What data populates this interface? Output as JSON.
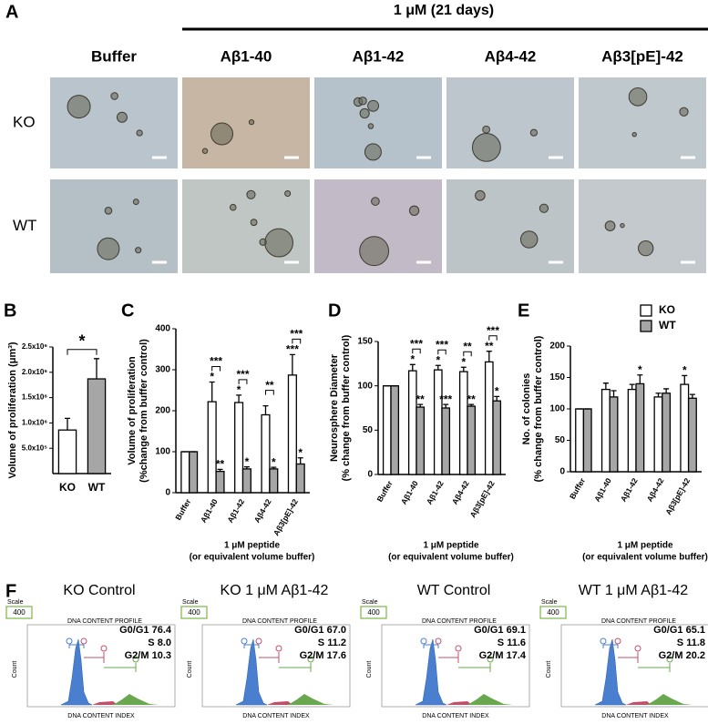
{
  "panel_a": {
    "label": "A",
    "header": "1 μM (21 days)",
    "columns": [
      "Buffer",
      "Aβ1-40",
      "Aβ1-42",
      "Aβ4-42",
      "Aβ3[pE]-42"
    ],
    "rows": [
      "KO",
      "WT"
    ]
  },
  "chart_data": [
    {
      "type": "bar",
      "panel_label": "B",
      "ylabel": [
        "Volume of proliferation (μm³)"
      ],
      "categories": [
        "KO",
        "WT"
      ],
      "series": [
        {
          "values": [
            860000,
            1870000
          ],
          "errors": [
            230000,
            400000
          ],
          "colors": [
            "#ffffff",
            "#a6a6a6"
          ]
        }
      ],
      "significance": "*",
      "ylim": [
        0,
        2500000
      ],
      "yticks": [
        {
          "value": 500000,
          "label": "5.0x10⁵"
        },
        {
          "value": 1000000,
          "label": "1.0x10⁶"
        },
        {
          "value": 1500000,
          "label": "1.5x10⁶"
        },
        {
          "value": 2000000,
          "label": "2.0x10⁶"
        },
        {
          "value": 2500000,
          "label": "2.5x10⁶"
        }
      ]
    },
    {
      "type": "bar",
      "panel_label": "C",
      "ylabel": [
        "Volume of proliferation",
        "(%change from buffer control)"
      ],
      "xlabel": [
        "1 μM peptide",
        "(or equivalent volume buffer)"
      ],
      "categories": [
        "Buffer",
        "Aβ1-40",
        "Aβ1-42",
        "Aβ4-42",
        "Aβ3[pE]-42"
      ],
      "series": [
        {
          "name": "KO",
          "color": "#ffffff",
          "values": [
            100,
            222,
            220,
            190,
            287
          ],
          "errors": [
            0,
            48,
            18,
            22,
            50
          ],
          "stars": [
            null,
            "*",
            "*",
            null,
            "***"
          ]
        },
        {
          "name": "WT",
          "color": "#a6a6a6",
          "values": [
            100,
            52,
            58,
            58,
            70
          ],
          "errors": [
            0,
            5,
            5,
            4,
            15
          ],
          "stars": [
            null,
            "**",
            "*",
            "*",
            "*"
          ]
        }
      ],
      "brackets": [
        null,
        "***",
        "***",
        "**",
        "***"
      ],
      "ylim": [
        0,
        400
      ],
      "yticks": [
        0,
        100,
        200,
        300,
        400
      ]
    },
    {
      "type": "bar",
      "panel_label": "D",
      "ylabel": [
        "Neurosphere Diameter",
        "(% change from buffer control)"
      ],
      "xlabel": [
        "1 μM peptide",
        "(or equivalent volume buffer)"
      ],
      "categories": [
        "Buffer",
        "Aβ1-40",
        "Aβ1-42",
        "Aβ4-42",
        "Aβ3[pE]-42"
      ],
      "series": [
        {
          "name": "KO",
          "color": "#ffffff",
          "values": [
            100,
            117,
            118,
            116,
            127
          ],
          "errors": [
            0,
            7,
            5,
            5,
            12
          ],
          "stars": [
            null,
            "*",
            "*",
            "*",
            "**"
          ]
        },
        {
          "name": "WT",
          "color": "#a6a6a6",
          "values": [
            100,
            76,
            75,
            77,
            83
          ],
          "errors": [
            0,
            3,
            4,
            2,
            5
          ],
          "stars": [
            null,
            "**",
            "***",
            "**",
            "*"
          ]
        }
      ],
      "brackets": [
        null,
        "***",
        "***",
        "**",
        "***"
      ],
      "ylim": [
        0,
        150
      ],
      "yticks": [
        0,
        50,
        100,
        150
      ]
    },
    {
      "type": "bar",
      "panel_label": "E",
      "ylabel": [
        "No. of colonies",
        "(% change from buffer control)"
      ],
      "xlabel": [
        "1 μM peptide",
        "(or equivalent volume buffer)"
      ],
      "categories": [
        "Buffer",
        "Aβ1-40",
        "Aβ1-42",
        "Aβ4-42",
        "Aβ3[pE]-42"
      ],
      "series": [
        {
          "name": "KO",
          "color": "#ffffff",
          "values": [
            100,
            131,
            131,
            119,
            139
          ],
          "errors": [
            0,
            10,
            8,
            6,
            14
          ],
          "stars": [
            null,
            null,
            null,
            null,
            "*"
          ]
        },
        {
          "name": "WT",
          "color": "#a6a6a6",
          "values": [
            100,
            119,
            140,
            125,
            117
          ],
          "errors": [
            0,
            10,
            14,
            7,
            6
          ],
          "stars": [
            null,
            null,
            "*",
            null,
            null
          ]
        }
      ],
      "legend": "upper right",
      "ylim": [
        0,
        200
      ],
      "yticks": [
        0,
        50,
        100,
        150,
        200
      ]
    }
  ],
  "panel_f": {
    "label": "F",
    "plots": [
      {
        "title": "KO Control",
        "scale_label": "Scale",
        "scale": 400,
        "profile_title": "DNA CONTENT PROFILE",
        "y_label": "Count",
        "x_label": "DNA CONTENT INDEX",
        "stats": [
          {
            "label": "G0/G1",
            "value": 76.4
          },
          {
            "label": "S",
            "value": 8.0
          },
          {
            "label": "G2/M",
            "value": 10.3
          }
        ]
      },
      {
        "title": "KO 1 μM Aβ1-42",
        "scale_label": "Scale",
        "scale": 400,
        "profile_title": "DNA CONTENT PROFILE",
        "y_label": "Count",
        "x_label": "DNA CONTENT INDEX",
        "stats": [
          {
            "label": "G0/G1",
            "value": 67.0
          },
          {
            "label": "S",
            "value": 11.2
          },
          {
            "label": "G2/M",
            "value": 17.6
          }
        ]
      },
      {
        "title": "WT Control",
        "scale_label": "Scale",
        "scale": 400,
        "profile_title": "DNA CONTENT PROFILE",
        "y_label": "Count",
        "x_label": "DNA CONTENT INDEX",
        "stats": [
          {
            "label": "G0/G1",
            "value": 69.1
          },
          {
            "label": "S",
            "value": 11.6
          },
          {
            "label": "G2/M",
            "value": 17.4
          }
        ]
      },
      {
        "title": "WT 1 μM Aβ1-42",
        "scale_label": "Scale",
        "scale": 400,
        "profile_title": "DNA CONTENT PROFILE",
        "y_label": "Count",
        "x_label": "DNA CONTENT INDEX",
        "stats": [
          {
            "label": "G0/G1",
            "value": 65.1
          },
          {
            "label": "S",
            "value": 11.8
          },
          {
            "label": "G2/M",
            "value": 20.2
          }
        ]
      }
    ]
  }
}
